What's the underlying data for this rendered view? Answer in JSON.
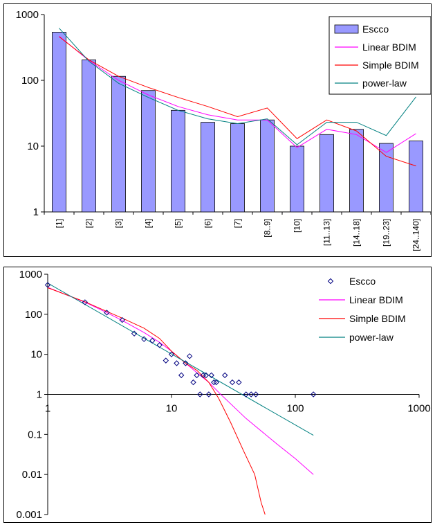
{
  "chart_data": [
    {
      "type": "bar",
      "scale": "log",
      "ylim": [
        1,
        1000
      ],
      "yticks": [
        "1",
        "10",
        "100",
        "1000"
      ],
      "categories": [
        "[1]",
        "[2]",
        "[3]",
        "[4]",
        "[5]",
        "[6]",
        "[7]",
        "[8..9]",
        "[10]",
        "[11..13]",
        "[14..18]",
        "[19..23]",
        "[24..140]"
      ],
      "legend_position": "top-right",
      "series": [
        {
          "name": "Escco",
          "kind": "bar",
          "color": "#9999ff",
          "values": [
            540,
            205,
            115,
            70,
            35,
            23,
            22,
            25,
            10,
            15,
            18,
            11,
            12
          ]
        },
        {
          "name": "Linear BDIM",
          "kind": "line",
          "color": "#ff00ff",
          "values": [
            470,
            200,
            100,
            60,
            40,
            30,
            25,
            25,
            9.5,
            18,
            15,
            8,
            15.5
          ]
        },
        {
          "name": "Simple BDIM",
          "kind": "line",
          "color": "#ff0000",
          "values": [
            460,
            205,
            115,
            78,
            55,
            40,
            28,
            38,
            13,
            25,
            17,
            7,
            5
          ]
        },
        {
          "name": "power-law",
          "kind": "line",
          "color": "#008080",
          "values": [
            620,
            195,
            90,
            55,
            35,
            26,
            22,
            26,
            10.5,
            23,
            23,
            14.5,
            56
          ]
        }
      ]
    },
    {
      "type": "scatter",
      "xscale": "log",
      "yscale": "log",
      "xlim": [
        1,
        1000
      ],
      "ylim": [
        0.001,
        1000
      ],
      "xticks": [
        "1",
        "10",
        "100",
        "1000"
      ],
      "yticks": [
        "1000",
        "100",
        "10",
        "1",
        "0.1",
        "0.01",
        "0.001"
      ],
      "legend_position": "top-right",
      "series": [
        {
          "name": "Escco",
          "kind": "points",
          "color": "#000080",
          "points": [
            [
              1,
              540
            ],
            [
              2,
              200
            ],
            [
              3,
              110
            ],
            [
              4,
              72
            ],
            [
              5,
              33
            ],
            [
              6,
              24
            ],
            [
              7,
              22
            ],
            [
              8,
              17
            ],
            [
              9,
              7
            ],
            [
              10,
              10
            ],
            [
              11,
              6
            ],
            [
              12,
              3
            ],
            [
              13,
              6
            ],
            [
              14,
              9
            ],
            [
              15,
              2
            ],
            [
              16,
              3
            ],
            [
              17,
              1
            ],
            [
              18,
              3
            ],
            [
              19,
              3
            ],
            [
              20,
              1
            ],
            [
              21,
              3
            ],
            [
              22,
              2
            ],
            [
              23,
              2
            ],
            [
              27,
              3
            ],
            [
              31,
              2
            ],
            [
              35,
              2
            ],
            [
              40,
              1
            ],
            [
              44,
              1
            ],
            [
              48,
              1
            ],
            [
              140,
              1
            ]
          ]
        },
        {
          "name": "Linear BDIM",
          "kind": "line",
          "color": "#ff00ff",
          "points": [
            [
              1,
              470
            ],
            [
              2,
              200
            ],
            [
              3,
              110
            ],
            [
              4,
              70
            ],
            [
              6,
              35
            ],
            [
              8,
              20
            ],
            [
              10,
              12
            ],
            [
              13,
              6
            ],
            [
              16,
              3.5
            ],
            [
              20,
              2
            ],
            [
              25,
              1
            ],
            [
              40,
              0.25
            ],
            [
              70,
              0.06
            ],
            [
              100,
              0.025
            ],
            [
              140,
              0.01
            ]
          ]
        },
        {
          "name": "Simple BDIM",
          "kind": "line",
          "color": "#ff0000",
          "points": [
            [
              1,
              460
            ],
            [
              2,
              205
            ],
            [
              3,
              118
            ],
            [
              4,
              80
            ],
            [
              6,
              45
            ],
            [
              8,
              25
            ],
            [
              10,
              12
            ],
            [
              13,
              6
            ],
            [
              16,
              4
            ],
            [
              20,
              2
            ],
            [
              24,
              0.8
            ],
            [
              30,
              0.2
            ],
            [
              38,
              0.04
            ],
            [
              47,
              0.01
            ],
            [
              53,
              0.002
            ],
            [
              57,
              0.001
            ]
          ]
        },
        {
          "name": "power-law",
          "kind": "line",
          "color": "#008080",
          "points": [
            [
              1,
              600
            ],
            [
              140,
              0.095
            ]
          ]
        }
      ]
    }
  ]
}
